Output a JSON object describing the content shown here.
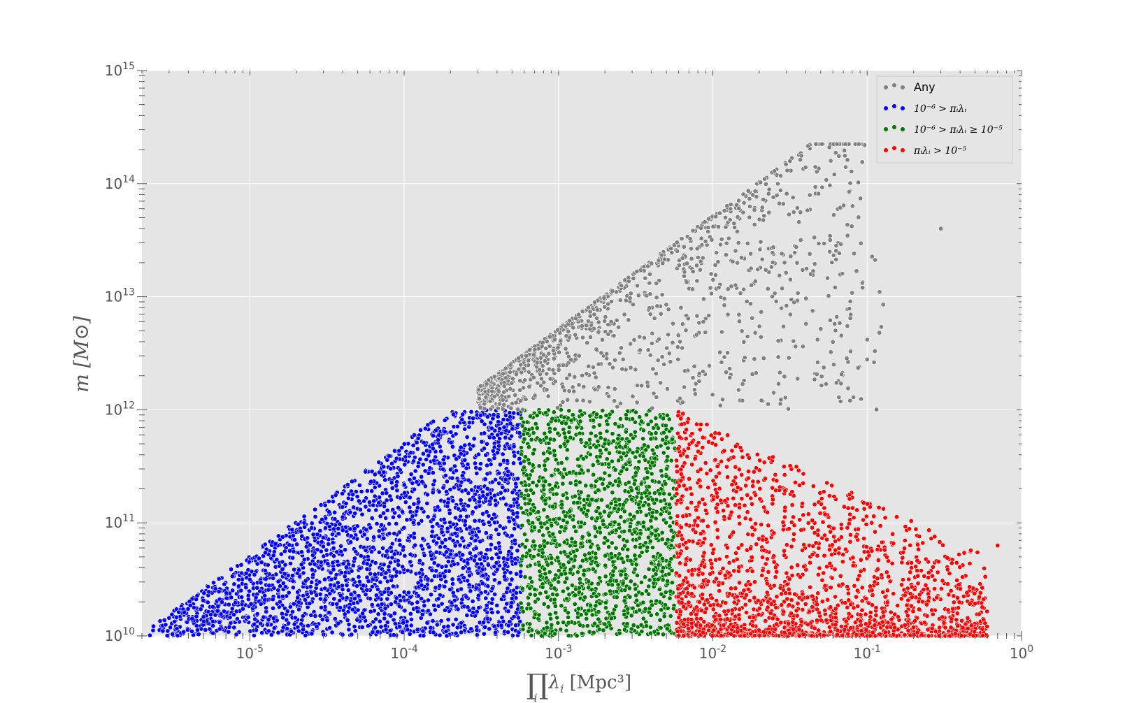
{
  "chart_data": {
    "type": "scatter",
    "x_scale": "log",
    "y_scale": "log",
    "xlim": [
      2e-06,
      1
    ],
    "ylim": [
      10000000000.0,
      1000000000000000.0
    ],
    "grid": true,
    "legend_position": "top-right",
    "xlabel": "∏λᵢ [Mpc³]",
    "xlabel_parts": {
      "symbol": "∏",
      "subscript": "i",
      "lambda": "λ",
      "lambda_sub": "i",
      "unit": " [Mpc³]"
    },
    "ylabel": "m [M⊙]",
    "x_tick_labels": [
      {
        "value": 1e-05,
        "base": "10",
        "exp": "-5"
      },
      {
        "value": 0.0001,
        "base": "10",
        "exp": "-4"
      },
      {
        "value": 0.001,
        "base": "10",
        "exp": "-3"
      },
      {
        "value": 0.01,
        "base": "10",
        "exp": "-2"
      },
      {
        "value": 0.1,
        "base": "10",
        "exp": "-1"
      },
      {
        "value": 1,
        "base": "10",
        "exp": "0"
      }
    ],
    "y_tick_labels": [
      {
        "value": 10000000000.0,
        "base": "10",
        "exp": "10"
      },
      {
        "value": 100000000000.0,
        "base": "10",
        "exp": "11"
      },
      {
        "value": 1000000000000.0,
        "base": "10",
        "exp": "12"
      },
      {
        "value": 10000000000000.0,
        "base": "10",
        "exp": "13"
      },
      {
        "value": 100000000000000.0,
        "base": "10",
        "exp": "14"
      },
      {
        "value": 1000000000000000.0,
        "base": "10",
        "exp": "15"
      }
    ],
    "series": [
      {
        "name": "Any",
        "color": "#808080",
        "region": "m > 1e12 along upper envelope m ≈ 5e18·x; sparse tail to x ≈ 0.3"
      },
      {
        "name": "10⁻⁶ > πᵢλᵢ",
        "color": "#0000ff",
        "x_range": [
          2.2e-06,
          0.00057
        ],
        "y_range": [
          10000000000.0,
          1000000000000.0
        ]
      },
      {
        "name": "10⁻⁶ > πᵢλᵢ ≥ 10⁻⁵",
        "color": "#007700",
        "x_range": [
          0.00057,
          0.0058
        ],
        "y_range": [
          10000000000.0,
          1000000000000.0
        ]
      },
      {
        "name": "πᵢλᵢ > 10⁻⁵",
        "color": "#ff0000",
        "x_range": [
          0.0058,
          0.7
        ],
        "y_range": [
          10000000000.0,
          1000000000000.0
        ]
      }
    ],
    "highlight_points": [
      {
        "series": "Any",
        "x": 0.3,
        "y": 40000000000000.0
      },
      {
        "series": "Any",
        "x": 0.12,
        "y": 4800000000000.0
      },
      {
        "series": "πᵢλᵢ > 10⁻⁵",
        "x": 0.7,
        "y": 63000000000.0
      }
    ]
  },
  "legend": [
    {
      "label": "Any",
      "color": "#808080",
      "style": "sans"
    },
    {
      "label": "10⁻⁶ > πᵢλᵢ",
      "color": "#0000ff",
      "style": "serif"
    },
    {
      "label": "10⁻⁶ > πᵢλᵢ ≥ 10⁻⁵",
      "color": "#007700",
      "style": "serif"
    },
    {
      "label": "πᵢλᵢ > 10⁻⁵",
      "color": "#ff0000",
      "style": "serif"
    }
  ],
  "colors": {
    "plot_background": "#e5e5e5",
    "grid": "#ffffff",
    "any": "#808080",
    "blue": "#0000ff",
    "green": "#007700",
    "red": "#ff0000"
  }
}
